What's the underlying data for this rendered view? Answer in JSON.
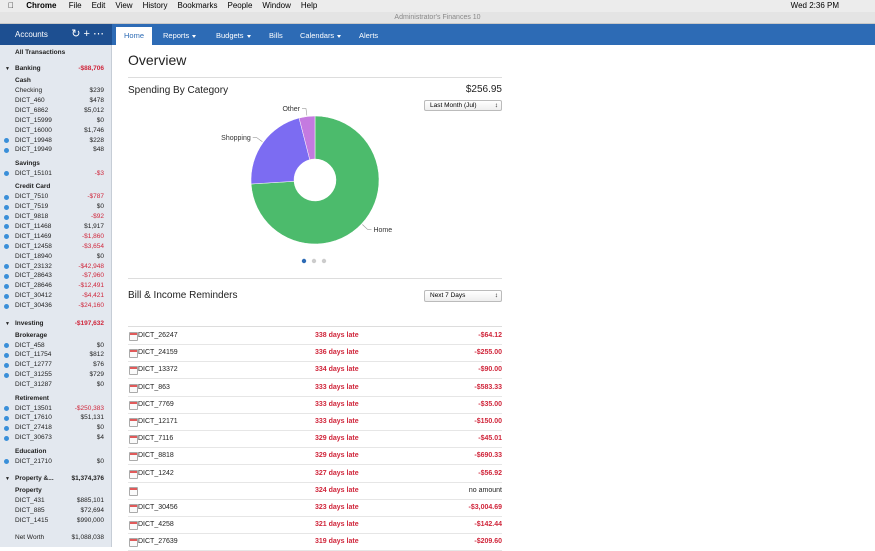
{
  "menubar": {
    "app": "Chrome",
    "items": [
      "File",
      "Edit",
      "View",
      "History",
      "Bookmarks",
      "People",
      "Window",
      "Help"
    ],
    "clock": "Wed 2:36 PM"
  },
  "window_title": "Administrator's Finances 10",
  "sidebar": {
    "title": "Accounts",
    "all": "All Transactions",
    "groups": [
      {
        "name": "Banking",
        "total": "-$88,706",
        "sections": [
          {
            "name": "Cash",
            "accounts": [
              {
                "name": "Checking",
                "amount": "$239",
                "dot": false
              },
              {
                "name": "DICT_460",
                "amount": "$478",
                "dot": false
              },
              {
                "name": "DICT_6862",
                "amount": "$5,012",
                "dot": false
              },
              {
                "name": "DICT_15999",
                "amount": "$0",
                "dot": false
              },
              {
                "name": "DICT_16000",
                "amount": "$1,746",
                "dot": false
              },
              {
                "name": "DICT_19948",
                "amount": "$228",
                "dot": true
              },
              {
                "name": "DICT_19949",
                "amount": "$48",
                "dot": true
              }
            ]
          },
          {
            "name": "Savings",
            "accounts": [
              {
                "name": "DICT_15101",
                "amount": "-$3",
                "dot": true
              }
            ]
          },
          {
            "name": "Credit Card",
            "accounts": [
              {
                "name": "DICT_7510",
                "amount": "-$787",
                "dot": true
              },
              {
                "name": "DICT_7519",
                "amount": "$0",
                "dot": true
              },
              {
                "name": "DICT_9818",
                "amount": "-$92",
                "dot": true
              },
              {
                "name": "DICT_11468",
                "amount": "$1,917",
                "dot": true
              },
              {
                "name": "DICT_11469",
                "amount": "-$1,860",
                "dot": true
              },
              {
                "name": "DICT_12458",
                "amount": "-$3,654",
                "dot": true
              },
              {
                "name": "DICT_18940",
                "amount": "$0",
                "dot": false
              },
              {
                "name": "DICT_23132",
                "amount": "-$42,948",
                "dot": true
              },
              {
                "name": "DICT_28643",
                "amount": "-$7,960",
                "dot": true
              },
              {
                "name": "DICT_28646",
                "amount": "-$12,491",
                "dot": true
              },
              {
                "name": "DICT_30412",
                "amount": "-$4,421",
                "dot": true
              },
              {
                "name": "DICT_30436",
                "amount": "-$24,160",
                "dot": true
              }
            ]
          }
        ]
      },
      {
        "name": "Investing",
        "total": "-$197,632",
        "sections": [
          {
            "name": "Brokerage",
            "accounts": [
              {
                "name": "DICT_458",
                "amount": "$0",
                "dot": true
              },
              {
                "name": "DICT_11754",
                "amount": "$812",
                "dot": true
              },
              {
                "name": "DICT_12777",
                "amount": "$76",
                "dot": true
              },
              {
                "name": "DICT_31255",
                "amount": "$729",
                "dot": true
              },
              {
                "name": "DICT_31287",
                "amount": "$0",
                "dot": false
              }
            ]
          },
          {
            "name": "Retirement",
            "accounts": [
              {
                "name": "DICT_13501",
                "amount": "-$250,383",
                "dot": true
              },
              {
                "name": "DICT_17610",
                "amount": "$51,131",
                "dot": true
              },
              {
                "name": "DICT_27418",
                "amount": "$0",
                "dot": true
              },
              {
                "name": "DICT_30673",
                "amount": "$4",
                "dot": true
              }
            ]
          },
          {
            "name": "Education",
            "accounts": [
              {
                "name": "DICT_21710",
                "amount": "$0",
                "dot": true
              }
            ]
          }
        ]
      },
      {
        "name": "Property &...",
        "total": "$1,374,376",
        "sections": [
          {
            "name": "Property",
            "accounts": [
              {
                "name": "DICT_431",
                "amount": "$885,101",
                "dot": false
              },
              {
                "name": "DICT_885",
                "amount": "$72,694",
                "dot": false
              },
              {
                "name": "DICT_1415",
                "amount": "$990,000",
                "dot": false
              }
            ]
          }
        ]
      }
    ],
    "net_worth": {
      "label": "Net Worth",
      "amount": "$1,088,038"
    }
  },
  "tabs": [
    "Home",
    "Reports",
    "Budgets",
    "Bills",
    "Calendars",
    "Alerts"
  ],
  "overview": {
    "title": "Overview",
    "total": "$256.95",
    "period": "Last Month (Jul)"
  },
  "chart_data": {
    "type": "pie",
    "title": "Spending By Category",
    "categories": [
      "Home",
      "Shopping",
      "Other"
    ],
    "values": [
      74,
      22,
      4
    ],
    "colors": [
      "#4cbb6c",
      "#7c6cf2",
      "#c47ae0"
    ]
  },
  "reminders": {
    "title": "Bill & Income Reminders",
    "period": "Next 7 Days",
    "rows": [
      {
        "name": "DICT_26247",
        "status": "338 days late",
        "amount": "-$64.12"
      },
      {
        "name": "DICT_24159",
        "status": "336 days late",
        "amount": "-$255.00"
      },
      {
        "name": "DICT_13372",
        "status": "334 days late",
        "amount": "-$90.00"
      },
      {
        "name": "DICT_863",
        "status": "333 days late",
        "amount": "-$583.33"
      },
      {
        "name": "DICT_7769",
        "status": "333 days late",
        "amount": "-$35.00"
      },
      {
        "name": "DICT_12171",
        "status": "333 days late",
        "amount": "-$150.00"
      },
      {
        "name": "DICT_7116",
        "status": "329 days late",
        "amount": "-$45.01"
      },
      {
        "name": "DICT_8818",
        "status": "329 days late",
        "amount": "-$690.33"
      },
      {
        "name": "DICT_1242",
        "status": "327 days late",
        "amount": "-$56.92"
      },
      {
        "name": null,
        "status": "324 days late",
        "amount": "no amount"
      },
      {
        "name": "DICT_30456",
        "status": "323 days late",
        "amount": "-$3,004.69"
      },
      {
        "name": "DICT_4258",
        "status": "321 days late",
        "amount": "-$142.44"
      },
      {
        "name": "DICT_27639",
        "status": "319 days late",
        "amount": "-$209.60"
      }
    ]
  }
}
